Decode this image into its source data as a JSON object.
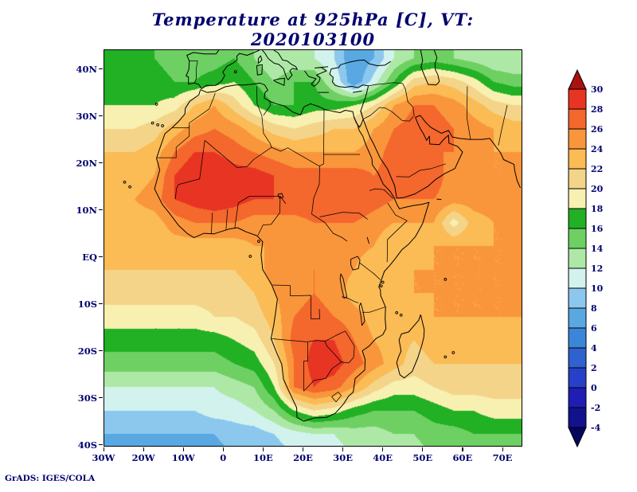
{
  "title": "Temperature at 925hPa [C], VT: 2020103100",
  "watermark": "GrADS: IGES/COLA",
  "text_color": "#00006e",
  "axes": {
    "x_tick_labels": [
      "30W",
      "20W",
      "10W",
      "0",
      "10E",
      "20E",
      "30E",
      "40E",
      "50E",
      "60E",
      "70E"
    ],
    "y_tick_labels": [
      "40N",
      "30N",
      "20N",
      "10N",
      "EQ",
      "10S",
      "20S",
      "30S",
      "40S"
    ]
  },
  "colorbar": {
    "labels_top_to_bottom": [
      "30",
      "28",
      "26",
      "24",
      "22",
      "20",
      "18",
      "16",
      "14",
      "12",
      "10",
      "8",
      "6",
      "4",
      "2",
      "0",
      "-2",
      "-4"
    ],
    "has_top_arrow": true,
    "has_bottom_arrow": true
  },
  "chart_data": {
    "type": "heatmap",
    "variable": "Temperature",
    "level": "925hPa",
    "units": "C",
    "valid_time": "2020103100",
    "title": "Temperature at 925hPa [C], VT: 2020103100",
    "lon_range": [
      -30,
      75
    ],
    "lat_range": [
      45,
      -45
    ],
    "grid_cell_deg": 5,
    "rows_order": "north-to-south",
    "levels": [
      -4,
      -2,
      0,
      2,
      4,
      6,
      8,
      10,
      12,
      14,
      16,
      18,
      20,
      22,
      24,
      26,
      28,
      30
    ],
    "palette_cold_to_hot": [
      "#06065e",
      "#12128e",
      "#1e1eb4",
      "#2840c8",
      "#2f62cf",
      "#3c86d8",
      "#5aa8e2",
      "#8cc8ee",
      "#d2f2ee",
      "#aee8a6",
      "#6ed063",
      "#22b024",
      "#f8f0b0",
      "#f3d489",
      "#fbbb55",
      "#f9963b",
      "#f4672d",
      "#e83423",
      "#aa1111"
    ],
    "values": [
      [
        16,
        16,
        16,
        15,
        15,
        15,
        16,
        14,
        12,
        12,
        12,
        10,
        6,
        8,
        12,
        14,
        15,
        14,
        13,
        12,
        12
      ],
      [
        17,
        17,
        17,
        16,
        16,
        17,
        18,
        16,
        14,
        16,
        16,
        12,
        6,
        11,
        16,
        21,
        22,
        21,
        19,
        16,
        15
      ],
      [
        18,
        18,
        18,
        19,
        22,
        24,
        21,
        18,
        16,
        16,
        17,
        17,
        18,
        20,
        24,
        26,
        26,
        25,
        23,
        21,
        20
      ],
      [
        20,
        20,
        21,
        23,
        25,
        26,
        25,
        23,
        21,
        20,
        21,
        22,
        22,
        24,
        26,
        27,
        27,
        26,
        25,
        24,
        23
      ],
      [
        22,
        22,
        23,
        26,
        28,
        28,
        27,
        26,
        25,
        24,
        24,
        24,
        24,
        25,
        27,
        27,
        26,
        26,
        25,
        24,
        24
      ],
      [
        23,
        23,
        24,
        28,
        30,
        30,
        29,
        29,
        28,
        27,
        27,
        27,
        27,
        26,
        27,
        28,
        27,
        25,
        24,
        24,
        24
      ],
      [
        24,
        24,
        25,
        28,
        29,
        30,
        29,
        28,
        28,
        28,
        28,
        28,
        28,
        27,
        26,
        26,
        26,
        25,
        25,
        25,
        25
      ],
      [
        23,
        23,
        23,
        25,
        26,
        26,
        26,
        25,
        25,
        25,
        26,
        26,
        26,
        25,
        24,
        24,
        24,
        19,
        23,
        24,
        24
      ],
      [
        23,
        23,
        23,
        23,
        23,
        23,
        23,
        24,
        24,
        25,
        25,
        25,
        25,
        24,
        22,
        23,
        24,
        24,
        24,
        24,
        24
      ],
      [
        22,
        22,
        22,
        22,
        22,
        22,
        22,
        23,
        25,
        26,
        26,
        25,
        24,
        22,
        23,
        24,
        24,
        24,
        24,
        24,
        24
      ],
      [
        21,
        21,
        21,
        21,
        21,
        21,
        21,
        22,
        24,
        25,
        26,
        25,
        23,
        22,
        23,
        24,
        24,
        24,
        24,
        24,
        24
      ],
      [
        19,
        19,
        19,
        19,
        19,
        20,
        20,
        21,
        23,
        26,
        27,
        26,
        25,
        23,
        23,
        23,
        24,
        24,
        24,
        24,
        24
      ],
      [
        17,
        17,
        17,
        17,
        17,
        17,
        18,
        19,
        22,
        27,
        28,
        28,
        26,
        24,
        23,
        22,
        23,
        23,
        23,
        23,
        23
      ],
      [
        15,
        15,
        15,
        15,
        15,
        15,
        16,
        17,
        20,
        26,
        29,
        29,
        27,
        25,
        23,
        21,
        22,
        22,
        22,
        22,
        22
      ],
      [
        12,
        12,
        12,
        12,
        12,
        12,
        13,
        14,
        18,
        26,
        28,
        27,
        24,
        21,
        19,
        19,
        20,
        21,
        21,
        21,
        21
      ],
      [
        10,
        10,
        10,
        10,
        10,
        11,
        11,
        12,
        14,
        18,
        20,
        19,
        17,
        16,
        16,
        16,
        17,
        18,
        18,
        19,
        19
      ],
      [
        8,
        8,
        8,
        8,
        8,
        8,
        9,
        9,
        10,
        11,
        12,
        12,
        13,
        13,
        14,
        14,
        15,
        15,
        16,
        16,
        16
      ],
      [
        7,
        7,
        7,
        7,
        7,
        7,
        8,
        8,
        9,
        10,
        11,
        11,
        12,
        12,
        13,
        13,
        14,
        14,
        15,
        15,
        15
      ]
    ]
  }
}
